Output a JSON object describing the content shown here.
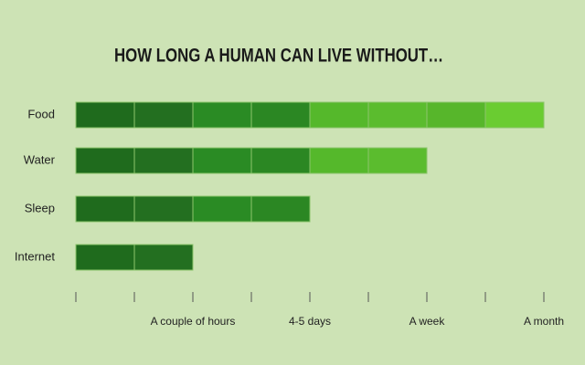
{
  "chart_data": {
    "type": "bar",
    "orientation": "horizontal",
    "title": "HOW LONG A HUMAN CAN LIVE WITHOUT…",
    "categories": [
      "Food",
      "Water",
      "Sleep",
      "Internet"
    ],
    "values": [
      8,
      6,
      4,
      2
    ],
    "segment_colors": [
      "#1f6b1d",
      "#236f20",
      "#2a8b24",
      "#2b8723",
      "#55b82b",
      "#5bbc2e",
      "#57b62b",
      "#6acc31"
    ],
    "xlim": [
      0,
      8
    ],
    "xticks": [
      {
        "value": 0,
        "label": null
      },
      {
        "value": 1,
        "label": null
      },
      {
        "value": 2,
        "label": "A couple of hours"
      },
      {
        "value": 3,
        "label": null
      },
      {
        "value": 4,
        "label": "4-5 days"
      },
      {
        "value": 5,
        "label": null
      },
      {
        "value": 6,
        "label": "A week"
      },
      {
        "value": 7,
        "label": null
      },
      {
        "value": 8,
        "label": "A month"
      }
    ],
    "grid": false
  }
}
